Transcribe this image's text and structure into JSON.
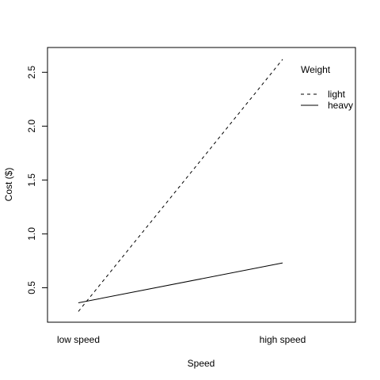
{
  "chart_data": {
    "type": "line",
    "title": "",
    "xlabel": "Speed",
    "ylabel": "Cost ($)",
    "categories": [
      "low speed",
      "high speed"
    ],
    "ylim": [
      0.18,
      2.73
    ],
    "yticks": [
      0.5,
      1.0,
      1.5,
      2.0,
      2.5
    ],
    "ytick_labels": [
      "0.5",
      "1.0",
      "1.5",
      "2.0",
      "2.5"
    ],
    "grid": false,
    "legend": {
      "title": "Weight",
      "position": "top-right",
      "boxed": false
    },
    "series": [
      {
        "name": "light",
        "values": [
          0.28,
          2.62
        ],
        "line_style": "dashed",
        "color": "#000000"
      },
      {
        "name": "heavy",
        "values": [
          0.36,
          0.73
        ],
        "line_style": "solid",
        "color": "#000000"
      }
    ]
  }
}
